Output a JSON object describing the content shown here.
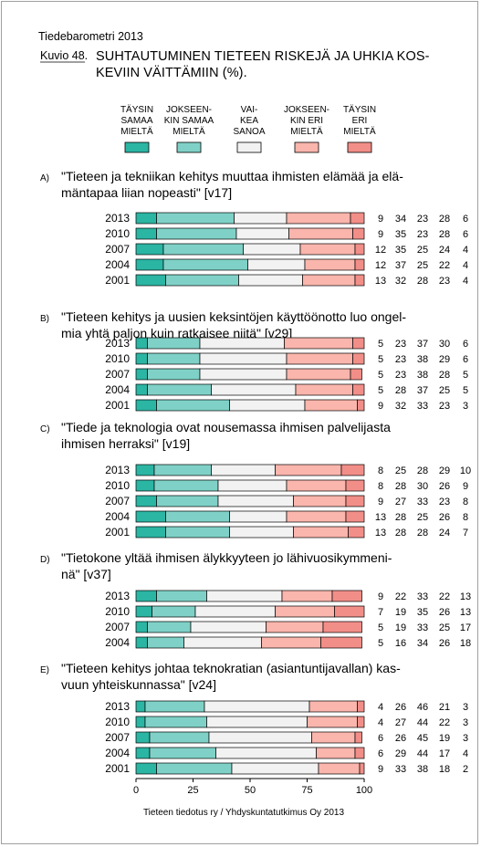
{
  "header": {
    "report": "Tiedebarometri 2013",
    "figure_label": "Kuvio 48.",
    "title_lines": [
      "SUHTAUTUMINEN TIETEEN RISKEJÄ JA UHKIA KOS-",
      "KEVIIN VÄITTÄMIIN (%)."
    ]
  },
  "colors": [
    "#2bb5a3",
    "#7fd1c7",
    "#f2f2f2",
    "#fab5ac",
    "#f28e88"
  ],
  "legend": [
    {
      "lines": [
        "TÄYSIN",
        "SAMAA",
        "MIELTÄ"
      ]
    },
    {
      "lines": [
        "JOKSEEN-",
        "KIN SAMAA",
        "MIELTÄ"
      ]
    },
    {
      "lines": [
        "VAI-",
        "KEA",
        "SANOA"
      ]
    },
    {
      "lines": [
        "JOKSEEN-",
        "KIN ERI",
        "MIELTÄ"
      ]
    },
    {
      "lines": [
        "TÄYSIN",
        "ERI",
        "MIELTÄ"
      ]
    }
  ],
  "chart_data": {
    "type": "bar",
    "orientation": "horizontal",
    "stacked": true,
    "xlim": [
      0,
      100
    ],
    "xticks": [
      "0",
      "25",
      "50",
      "75",
      "100"
    ],
    "series": [
      "TÄYSIN SAMAA MIELTÄ",
      "JOKSEENKIN SAMAA MIELTÄ",
      "VAIKEA SANOA",
      "JOKSEENKIN ERI MIELTÄ",
      "TÄYSIN ERI MIELTÄ"
    ],
    "groups": [
      {
        "letter": "A)",
        "question": [
          "\"Tieteen ja tekniikan kehitys muuttaa ihmisten elämää ja elä-",
          "mäntapaa liian nopeasti\" [v17]"
        ],
        "rows": [
          {
            "year": "2013",
            "values": [
              9,
              34,
              23,
              28,
              6
            ]
          },
          {
            "year": "2010",
            "values": [
              9,
              35,
              23,
              28,
              6
            ]
          },
          {
            "year": "2007",
            "values": [
              12,
              35,
              25,
              24,
              4
            ]
          },
          {
            "year": "2004",
            "values": [
              12,
              37,
              25,
              22,
              4
            ]
          },
          {
            "year": "2001",
            "values": [
              13,
              32,
              28,
              23,
              4
            ]
          }
        ]
      },
      {
        "letter": "B)",
        "question": [
          "\"Tieteen kehitys ja uusien keksintöjen käyttöönotto luo ongel-",
          "mia yhtä paljon kuin ratkaisee niitä\" [v29]"
        ],
        "rows": [
          {
            "year": "2013",
            "values": [
              5,
              23,
              37,
              30,
              6
            ]
          },
          {
            "year": "2010",
            "values": [
              5,
              23,
              38,
              29,
              6
            ]
          },
          {
            "year": "2007",
            "values": [
              5,
              23,
              38,
              28,
              5
            ]
          },
          {
            "year": "2004",
            "values": [
              5,
              28,
              37,
              25,
              5
            ]
          },
          {
            "year": "2001",
            "values": [
              9,
              32,
              33,
              23,
              3
            ]
          }
        ]
      },
      {
        "letter": "C)",
        "question": [
          "\"Tiede ja teknologia ovat nousemassa ihmisen palvelijasta",
          "ihmisen herraksi\" [v19]"
        ],
        "rows": [
          {
            "year": "2013",
            "values": [
              8,
              25,
              28,
              29,
              10
            ]
          },
          {
            "year": "2010",
            "values": [
              8,
              28,
              30,
              26,
              9
            ]
          },
          {
            "year": "2007",
            "values": [
              9,
              27,
              33,
              23,
              8
            ]
          },
          {
            "year": "2004",
            "values": [
              13,
              28,
              25,
              26,
              8
            ]
          },
          {
            "year": "2001",
            "values": [
              13,
              28,
              28,
              24,
              7
            ]
          }
        ]
      },
      {
        "letter": "D)",
        "question": [
          "\"Tietokone yltää ihmisen älykkyyteen jo lähivuosikymmeni-",
          "nä\" [v37]"
        ],
        "rows": [
          {
            "year": "2013",
            "values": [
              9,
              22,
              33,
              22,
              13
            ]
          },
          {
            "year": "2010",
            "values": [
              7,
              19,
              35,
              26,
              13
            ]
          },
          {
            "year": "2007",
            "values": [
              5,
              19,
              33,
              25,
              17
            ]
          },
          {
            "year": "2004",
            "values": [
              5,
              16,
              34,
              26,
              18
            ]
          }
        ]
      },
      {
        "letter": "E)",
        "question": [
          "\"Tieteen kehitys johtaa teknokratian (asiantuntijavallan) kas-",
          "vuun yhteiskunnassa\" [v24]"
        ],
        "rows": [
          {
            "year": "2013",
            "values": [
              4,
              26,
              46,
              21,
              3
            ]
          },
          {
            "year": "2010",
            "values": [
              4,
              27,
              44,
              22,
              3
            ]
          },
          {
            "year": "2007",
            "values": [
              6,
              26,
              45,
              19,
              3
            ]
          },
          {
            "year": "2004",
            "values": [
              6,
              29,
              44,
              17,
              4
            ]
          },
          {
            "year": "2001",
            "values": [
              9,
              33,
              38,
              18,
              2
            ]
          }
        ]
      }
    ]
  },
  "footer": "Tieteen tiedotus ry / Yhdyskuntatutkimus Oy 2013"
}
